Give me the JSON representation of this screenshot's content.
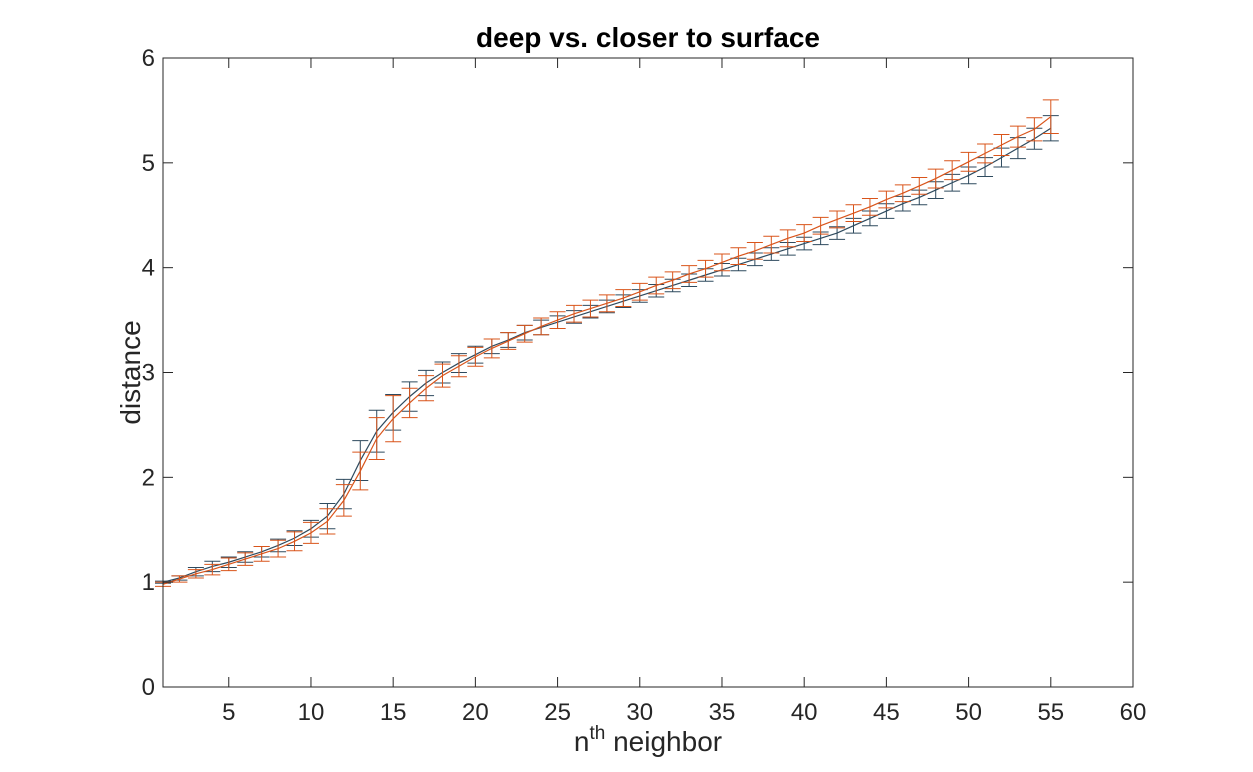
{
  "chart_data": {
    "type": "line",
    "title": "deep vs. closer to surface",
    "xlabel": {
      "base": "n",
      "sup": "th",
      "rest": " neighbor"
    },
    "ylabel": "distance",
    "xlim": [
      1,
      60
    ],
    "ylim": [
      0,
      6
    ],
    "xticks": [
      5,
      10,
      15,
      20,
      25,
      30,
      35,
      40,
      45,
      50,
      55,
      60
    ],
    "yticks": [
      0,
      1,
      2,
      3,
      4,
      5,
      6
    ],
    "grid": false,
    "box": true,
    "series": [
      {
        "color": "#2E4A5E",
        "x": [
          1,
          2,
          3,
          4,
          5,
          6,
          7,
          8,
          9,
          10,
          11,
          12,
          13,
          14,
          15,
          16,
          17,
          18,
          19,
          20,
          21,
          22,
          23,
          24,
          25,
          26,
          27,
          28,
          29,
          30,
          31,
          32,
          33,
          34,
          35,
          36,
          37,
          38,
          39,
          40,
          41,
          42,
          43,
          44,
          45,
          46,
          47,
          48,
          49,
          50,
          51,
          52,
          53,
          54,
          55
        ],
        "y": [
          1.0,
          1.04,
          1.1,
          1.15,
          1.19,
          1.24,
          1.29,
          1.35,
          1.42,
          1.51,
          1.63,
          1.84,
          2.16,
          2.44,
          2.62,
          2.77,
          2.9,
          3.0,
          3.09,
          3.17,
          3.25,
          3.31,
          3.38,
          3.43,
          3.48,
          3.53,
          3.58,
          3.63,
          3.68,
          3.73,
          3.78,
          3.83,
          3.88,
          3.93,
          3.98,
          4.03,
          4.08,
          4.13,
          4.18,
          4.23,
          4.28,
          4.33,
          4.4,
          4.47,
          4.54,
          4.61,
          4.67,
          4.74,
          4.81,
          4.88,
          4.96,
          5.05,
          5.14,
          5.23,
          5.33
        ],
        "err": [
          0.01,
          0.02,
          0.04,
          0.05,
          0.05,
          0.05,
          0.05,
          0.06,
          0.07,
          0.08,
          0.12,
          0.14,
          0.19,
          0.2,
          0.17,
          0.14,
          0.12,
          0.1,
          0.09,
          0.08,
          0.07,
          0.07,
          0.07,
          0.07,
          0.06,
          0.06,
          0.06,
          0.06,
          0.06,
          0.06,
          0.06,
          0.06,
          0.06,
          0.06,
          0.06,
          0.06,
          0.06,
          0.06,
          0.06,
          0.06,
          0.06,
          0.06,
          0.07,
          0.07,
          0.07,
          0.07,
          0.07,
          0.08,
          0.08,
          0.08,
          0.09,
          0.09,
          0.1,
          0.1,
          0.12
        ]
      },
      {
        "color": "#D9541A",
        "x": [
          1,
          2,
          3,
          4,
          5,
          6,
          7,
          8,
          9,
          10,
          11,
          12,
          13,
          14,
          15,
          16,
          17,
          18,
          19,
          20,
          21,
          22,
          23,
          24,
          25,
          26,
          27,
          28,
          29,
          30,
          31,
          32,
          33,
          34,
          35,
          36,
          37,
          38,
          39,
          40,
          41,
          42,
          43,
          44,
          45,
          46,
          47,
          48,
          49,
          50,
          51,
          52,
          53,
          54,
          55
        ],
        "y": [
          0.98,
          1.03,
          1.08,
          1.12,
          1.17,
          1.22,
          1.27,
          1.32,
          1.39,
          1.47,
          1.58,
          1.78,
          2.06,
          2.37,
          2.56,
          2.71,
          2.85,
          2.97,
          3.06,
          3.15,
          3.23,
          3.3,
          3.37,
          3.44,
          3.5,
          3.56,
          3.61,
          3.66,
          3.71,
          3.77,
          3.83,
          3.88,
          3.94,
          3.99,
          4.05,
          4.11,
          4.16,
          4.22,
          4.28,
          4.33,
          4.4,
          4.46,
          4.52,
          4.58,
          4.65,
          4.71,
          4.78,
          4.85,
          4.93,
          5.01,
          5.09,
          5.17,
          5.25,
          5.32,
          5.44
        ],
        "err": [
          0.02,
          0.03,
          0.04,
          0.05,
          0.06,
          0.06,
          0.07,
          0.08,
          0.09,
          0.1,
          0.12,
          0.15,
          0.18,
          0.2,
          0.22,
          0.14,
          0.12,
          0.11,
          0.1,
          0.09,
          0.09,
          0.08,
          0.08,
          0.08,
          0.08,
          0.08,
          0.08,
          0.08,
          0.08,
          0.08,
          0.08,
          0.08,
          0.08,
          0.08,
          0.08,
          0.08,
          0.08,
          0.08,
          0.08,
          0.08,
          0.08,
          0.08,
          0.08,
          0.08,
          0.08,
          0.08,
          0.08,
          0.09,
          0.09,
          0.09,
          0.09,
          0.1,
          0.1,
          0.11,
          0.16
        ]
      }
    ]
  }
}
